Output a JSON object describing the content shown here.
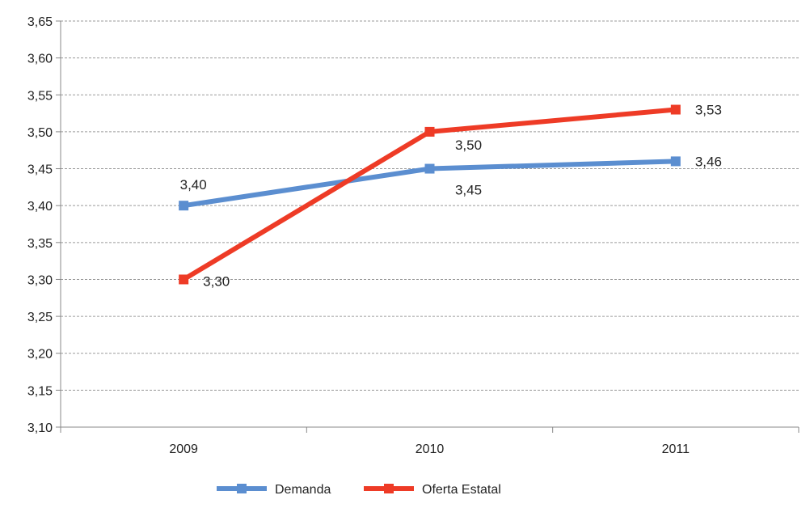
{
  "chart_data": {
    "type": "line",
    "title": "",
    "xlabel": "",
    "ylabel": "",
    "categories": [
      "2009",
      "2010",
      "2011"
    ],
    "ylim": [
      3.1,
      3.65
    ],
    "ytick_step": 0.05,
    "y_tick_labels": [
      "3,10",
      "3,15",
      "3,20",
      "3,25",
      "3,30",
      "3,35",
      "3,40",
      "3,45",
      "3,50",
      "3,55",
      "3,60",
      "3,65"
    ],
    "grid": "horizontal dashed",
    "legend_position": "bottom-center",
    "series": [
      {
        "name": "Demanda",
        "color": "#5b8ed0",
        "values": [
          3.4,
          3.45,
          3.46
        ],
        "data_labels": [
          "3,40",
          "3,45",
          "3,46"
        ],
        "marker": "square"
      },
      {
        "name": "Oferta Estatal",
        "color": "#ee3b26",
        "values": [
          3.3,
          3.5,
          3.53
        ],
        "data_labels": [
          "3,30",
          "3,50",
          "3,53"
        ],
        "marker": "square"
      }
    ]
  }
}
